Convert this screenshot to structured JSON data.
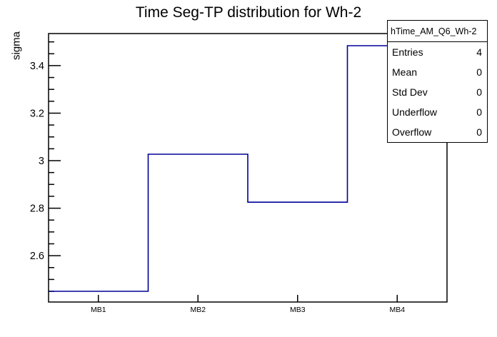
{
  "chart_data": {
    "type": "bar",
    "subtype": "step-outline-histogram",
    "title": "Time Seg-TP distribution for Wh-2",
    "xlabel": "",
    "ylabel": "sigma",
    "categories": [
      "MB1",
      "MB2",
      "MB3",
      "MB4"
    ],
    "values": [
      2.45,
      3.027,
      2.825,
      3.484
    ],
    "ylim": [
      2.405,
      3.535
    ],
    "y_major_ticks": [
      2.6,
      2.8,
      3.0,
      3.2,
      3.4
    ],
    "y_minor_step": 0.05,
    "grid": false,
    "legend_position": "none",
    "line_color": "#000099",
    "frame_color": "#000000"
  },
  "stats_box": {
    "header": "hTime_AM_Q6_Wh-2",
    "rows": [
      {
        "label": "Entries",
        "value": "4"
      },
      {
        "label": "Mean",
        "value": "0"
      },
      {
        "label": "Std Dev",
        "value": "0"
      },
      {
        "label": "Underflow",
        "value": "0"
      },
      {
        "label": "Overflow",
        "value": "0"
      }
    ]
  }
}
